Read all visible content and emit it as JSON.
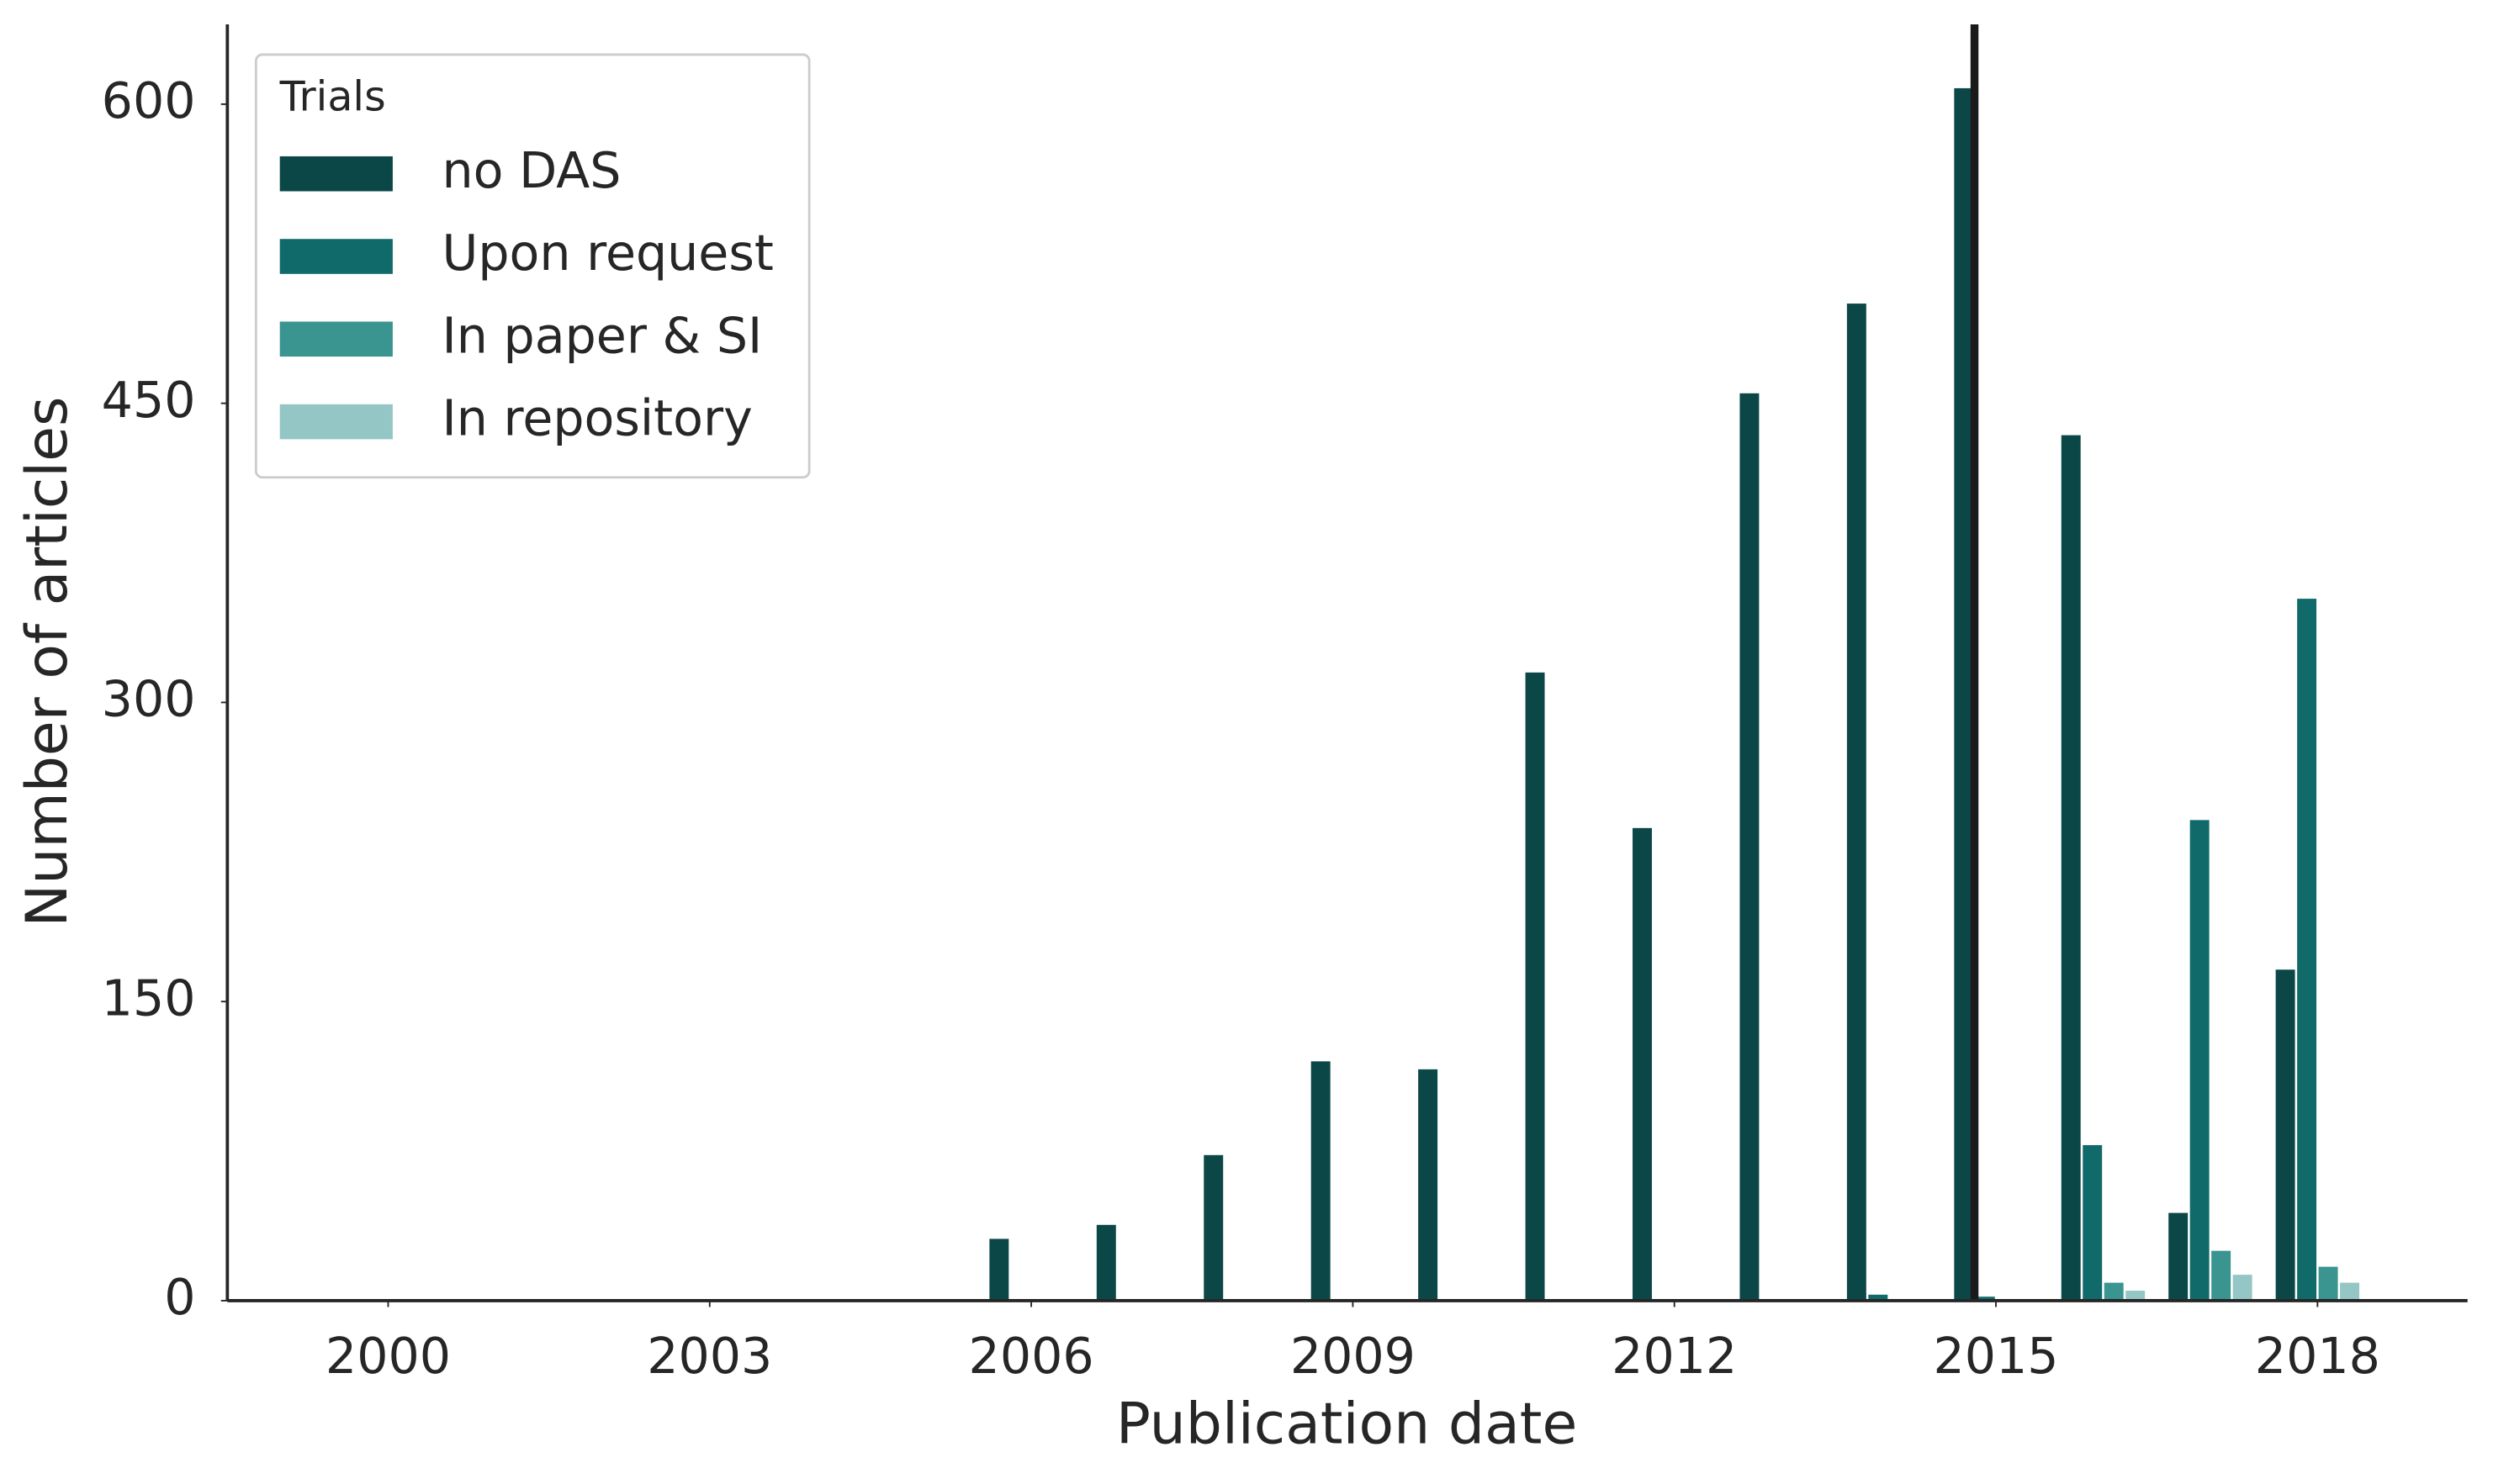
{
  "chart_data": {
    "type": "bar",
    "x_label": "Publication date",
    "y_label": "Number of articles",
    "legend_title": "Trials",
    "legend": "upper left",
    "x": [
      2006,
      2007,
      2008,
      2009,
      2010,
      2011,
      2012,
      2013,
      2014,
      2015,
      2016,
      2017,
      2018
    ],
    "series": [
      {
        "name": "no DAS",
        "color": "#0b4747",
        "values": [
          31,
          38,
          73,
          120,
          116,
          315,
          237,
          455,
          500,
          608,
          434,
          44,
          166
        ]
      },
      {
        "name": "Upon request",
        "color": "#116a6a",
        "values": [
          0,
          0,
          0,
          0,
          0,
          0,
          0,
          0,
          3,
          2,
          78,
          241,
          352
        ]
      },
      {
        "name": "In paper & SI",
        "color": "#3a9490",
        "values": [
          0,
          0,
          0,
          0,
          0,
          0,
          0,
          0,
          0,
          0,
          9,
          25,
          17
        ]
      },
      {
        "name": "In repository",
        "color": "#93c6c4",
        "values": [
          0,
          0,
          0,
          0,
          0,
          0,
          0,
          0,
          0,
          0,
          5,
          13,
          9
        ]
      }
    ],
    "reference_line_x": 2014.8,
    "reference_line_color": "#1a1a1a",
    "xlim": [
      1998.5,
      2019.4
    ],
    "xticks": [
      2000,
      2003,
      2006,
      2009,
      2012,
      2015,
      2018
    ],
    "ylim": [
      0,
      640
    ],
    "yticks": [
      0,
      150,
      300,
      450,
      600
    ],
    "grid": false
  }
}
